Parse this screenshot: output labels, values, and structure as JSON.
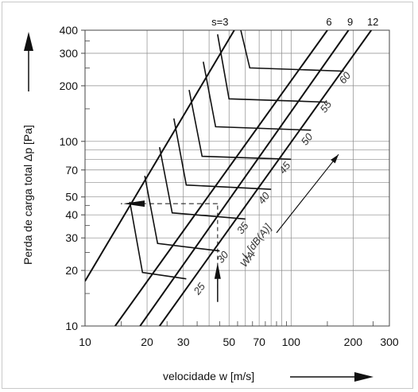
{
  "chart_data": {
    "type": "line",
    "scale": "log-log",
    "xlabel": "velocidade w  [m/s]",
    "ylabel": "Perda de carga total Δp   [Pa]",
    "xlim": [
      10,
      300
    ],
    "ylim": [
      10,
      400
    ],
    "x_ticks": [
      {
        "value": 10,
        "label": "10"
      },
      {
        "value": 20,
        "label": "20"
      },
      {
        "value": 30,
        "label": "30"
      },
      {
        "value": 50,
        "label": "50"
      },
      {
        "value": 70,
        "label": "70"
      },
      {
        "value": 100,
        "label": "100"
      },
      {
        "value": 200,
        "label": "200"
      },
      {
        "value": 300,
        "label": "300"
      }
    ],
    "y_ticks": [
      {
        "value": 10,
        "label": "10"
      },
      {
        "value": 20,
        "label": "20"
      },
      {
        "value": 30,
        "label": "30"
      },
      {
        "value": 40,
        "label": "40"
      },
      {
        "value": 50,
        "label": "50"
      },
      {
        "value": 70,
        "label": "70"
      },
      {
        "value": 100,
        "label": "100"
      },
      {
        "value": 200,
        "label": "200"
      },
      {
        "value": 300,
        "label": "300"
      },
      {
        "value": 400,
        "label": "400"
      }
    ],
    "grid": true,
    "series": [
      {
        "name": "s=3",
        "points": [
          [
            10,
            17.5
          ],
          [
            53,
            400
          ]
        ]
      },
      {
        "name": "6",
        "points": [
          [
            14,
            10
          ],
          [
            150,
            400
          ]
        ]
      },
      {
        "name": "9",
        "points": [
          [
            18.5,
            10
          ],
          [
            190,
            400
          ]
        ]
      },
      {
        "name": "12",
        "points": [
          [
            23,
            10
          ],
          [
            245,
            400
          ]
        ]
      }
    ],
    "noise_label": "L  [dB(A)]",
    "noise_label_subscript": "WA",
    "noise_levels": [
      "25",
      "30",
      "35",
      "40",
      "45",
      "50",
      "55",
      "60"
    ],
    "noise_curves": [
      {
        "level": "25",
        "points": [
          [
            16.5,
            47
          ],
          [
            19,
            19.5
          ],
          [
            31,
            18
          ]
        ]
      },
      {
        "level": "30",
        "points": [
          [
            19.5,
            65
          ],
          [
            22.5,
            28
          ],
          [
            45,
            25.5
          ]
        ]
      },
      {
        "level": "35",
        "points": [
          [
            23,
            93
          ],
          [
            26.5,
            41
          ],
          [
            60,
            38
          ]
        ]
      },
      {
        "level": "40",
        "points": [
          [
            27,
            133
          ],
          [
            31,
            58
          ],
          [
            80,
            55
          ]
        ]
      },
      {
        "level": "45",
        "points": [
          [
            32,
            190
          ],
          [
            37,
            83
          ],
          [
            100,
            80
          ]
        ]
      },
      {
        "level": "50",
        "points": [
          [
            37.5,
            270
          ],
          [
            43,
            120
          ],
          [
            125,
            115
          ]
        ]
      },
      {
        "level": "55",
        "points": [
          [
            44,
            380
          ],
          [
            50,
            170
          ],
          [
            150,
            163
          ]
        ]
      },
      {
        "level": "60",
        "points": [
          [
            57,
            400
          ],
          [
            63,
            250
          ],
          [
            180,
            240
          ]
        ]
      }
    ],
    "example": {
      "w": 44,
      "dp": 46
    }
  }
}
